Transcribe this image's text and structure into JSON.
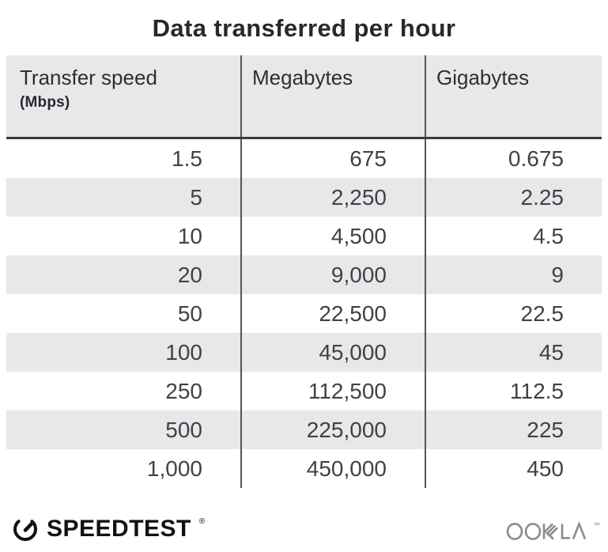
{
  "title": "Data transferred per hour",
  "table": {
    "columns": [
      {
        "label": "Transfer speed",
        "sublabel": "(Mbps)"
      },
      {
        "label": "Megabytes"
      },
      {
        "label": "Gigabytes"
      }
    ],
    "rows": [
      [
        "1.5",
        "675",
        "0.675"
      ],
      [
        "5",
        "2,250",
        "2.25"
      ],
      [
        "10",
        "4,500",
        "4.5"
      ],
      [
        "20",
        "9,000",
        "9"
      ],
      [
        "50",
        "22,500",
        "22.5"
      ],
      [
        "100",
        "45,000",
        "45"
      ],
      [
        "250",
        "112,500",
        "112.5"
      ],
      [
        "500",
        "225,000",
        "225"
      ],
      [
        "1,000",
        "450,000",
        "450"
      ]
    ]
  },
  "footer": {
    "speedtest_label": "SPEEDTEST",
    "speedtest_mark": "®",
    "ookla_label": "OOKLA",
    "ookla_mark": "™"
  },
  "colors": {
    "stripe_bg": "#e8e8eb",
    "header_bg": "#e8e8eb",
    "column_divider": "#55555a",
    "header_rule": "#3b3b40",
    "body_text": "#414146",
    "title_text": "#28282d",
    "ookla_gray": "#8c8c8c",
    "speedtest_black": "#121214"
  },
  "chart_data": {
    "type": "table",
    "title": "Data transferred per hour",
    "columns": [
      "Transfer speed (Mbps)",
      "Megabytes",
      "Gigabytes"
    ],
    "rows": [
      [
        1.5,
        675,
        0.675
      ],
      [
        5,
        2250,
        2.25
      ],
      [
        10,
        4500,
        4.5
      ],
      [
        20,
        9000,
        9
      ],
      [
        50,
        22500,
        22.5
      ],
      [
        100,
        45000,
        45
      ],
      [
        250,
        112500,
        112.5
      ],
      [
        500,
        225000,
        225
      ],
      [
        1000,
        450000,
        450
      ]
    ],
    "layout": {
      "striped_rows": true,
      "stripe_start_row_index": 1,
      "column_alignment": [
        "right",
        "right",
        "right"
      ]
    }
  }
}
